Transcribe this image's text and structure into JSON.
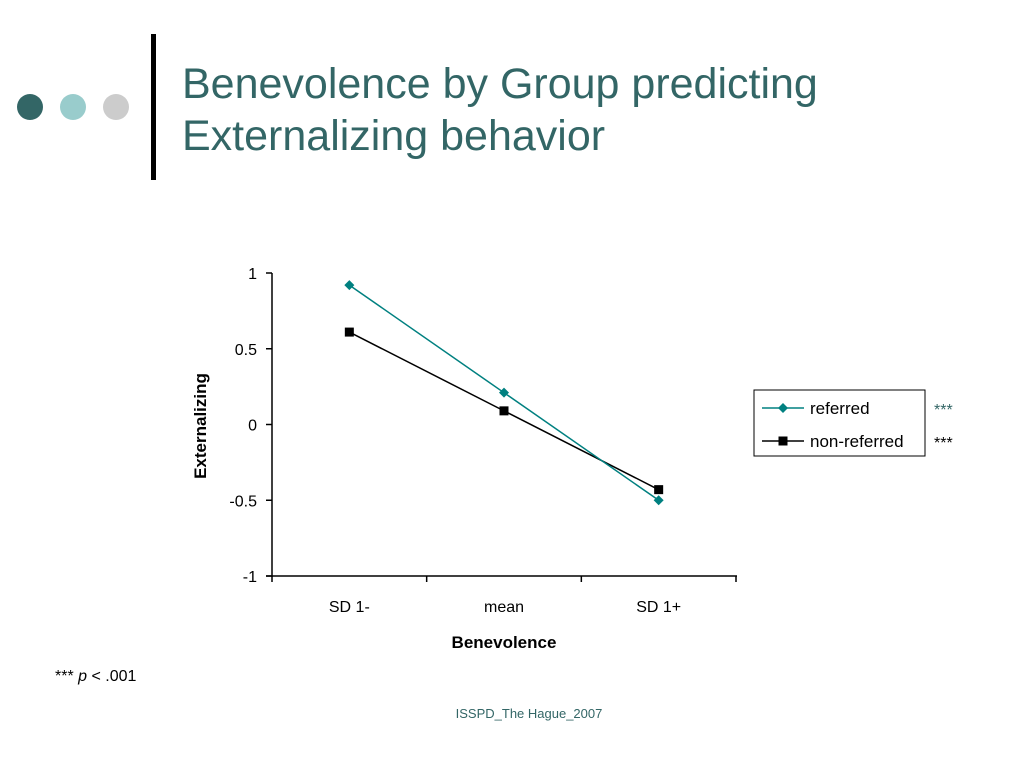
{
  "slide": {
    "title_line1": "Benevolence by Group predicting",
    "title_line2": "Externalizing behavior",
    "footnote_stars": "***",
    "footnote_p": "p",
    "footnote_rest": "< .001",
    "footer": "ISSPD_The Hague_2007",
    "decor_dot_colors": [
      "#336666",
      "#99cccc",
      "#cccccc"
    ]
  },
  "chart_data": {
    "type": "line",
    "title": "",
    "xlabel": "Benevolence",
    "ylabel": "Externalizing",
    "categories": [
      "SD 1-",
      "mean",
      "SD 1+"
    ],
    "ylim": [
      -1,
      1
    ],
    "yticks": [
      1,
      0.5,
      0,
      -0.5,
      -1
    ],
    "ytick_labels": [
      "1",
      "0.5",
      "0",
      "-0.5",
      "-1"
    ],
    "grid": false,
    "legend_position": "right",
    "series": [
      {
        "name": "referred",
        "values": [
          0.92,
          0.21,
          -0.5
        ],
        "color": "#008080",
        "marker": "diamond",
        "significance": "***",
        "significance_color": "#336666"
      },
      {
        "name": "non-referred",
        "values": [
          0.61,
          0.09,
          -0.43
        ],
        "color": "#000000",
        "marker": "square",
        "significance": "***",
        "significance_color": "#000000"
      }
    ]
  }
}
